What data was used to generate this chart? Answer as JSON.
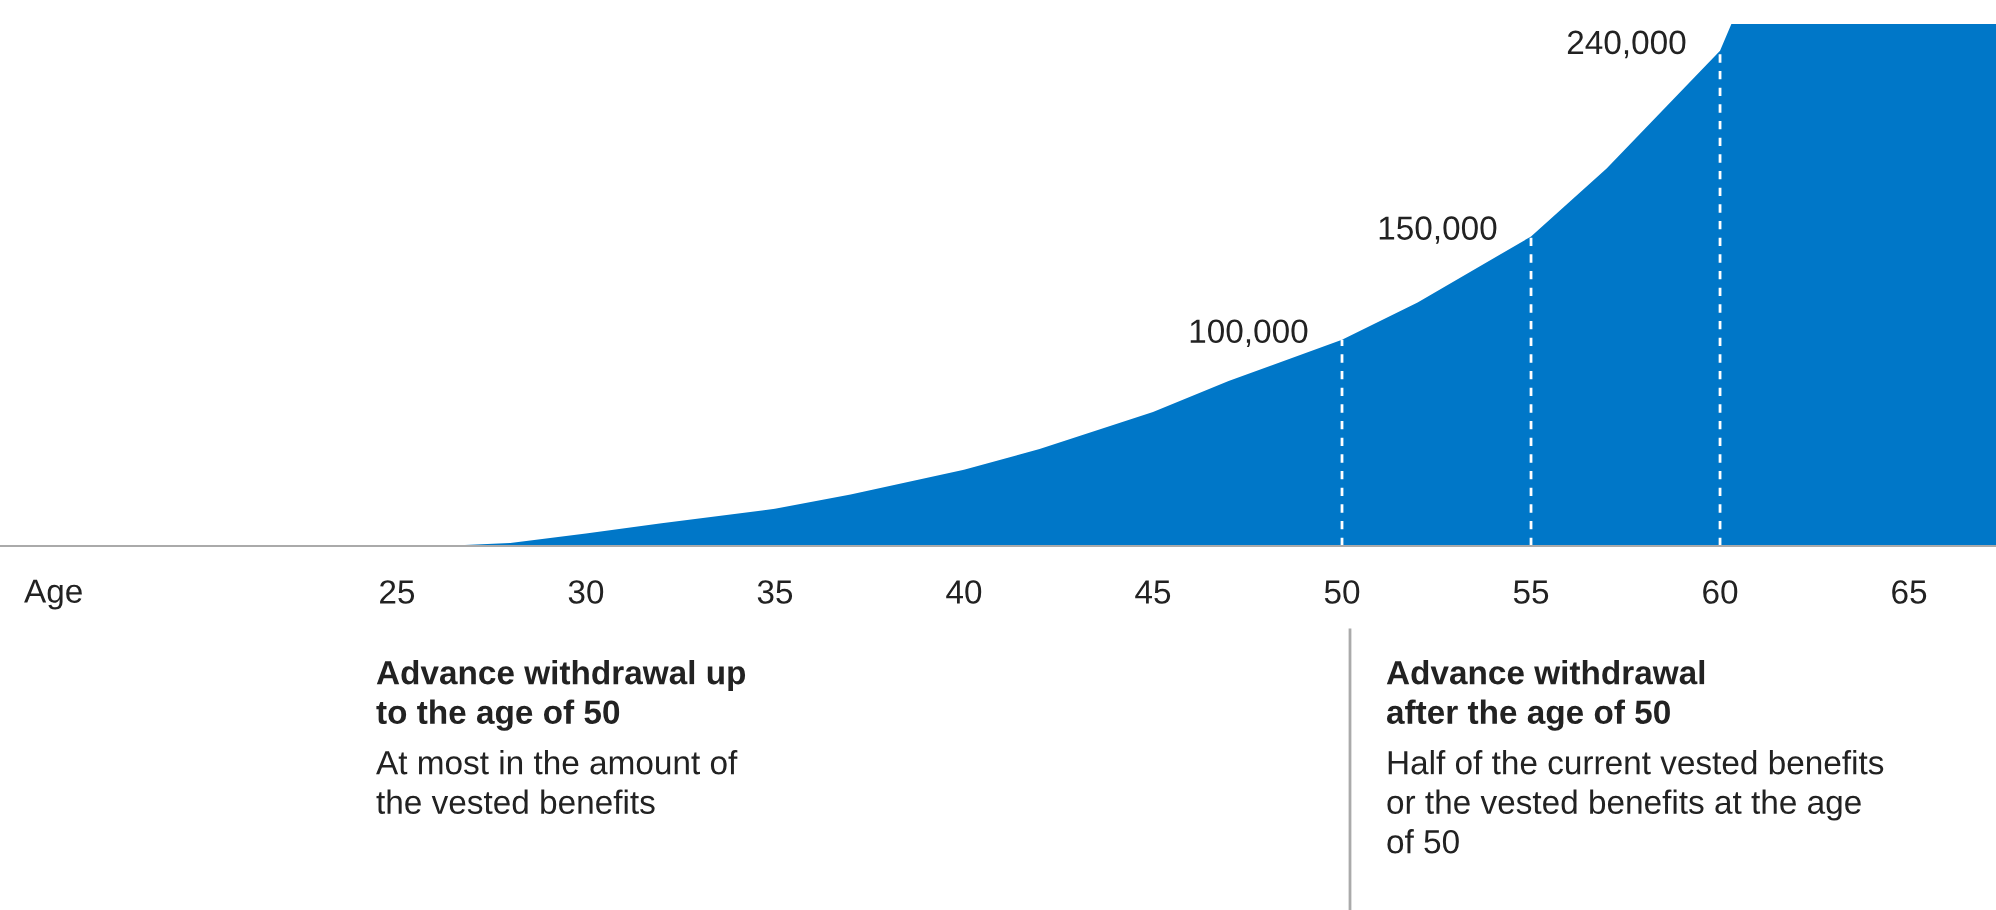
{
  "chart_data": {
    "type": "area",
    "xlabel": "Age",
    "x": [
      26.2,
      28,
      30,
      32,
      35,
      37,
      40,
      42,
      45,
      47,
      50,
      52,
      55,
      57,
      60,
      60.3,
      67.3
    ],
    "series": [
      {
        "color": "#0077c8",
        "values": [
          0,
          1500,
          6000,
          11000,
          18000,
          25000,
          37000,
          47000,
          65000,
          80000,
          100000,
          118000,
          150000,
          183000,
          240000,
          253000,
          253000
        ],
        "value_labels": [
          null,
          null,
          null,
          null,
          null,
          null,
          null,
          null,
          null,
          null,
          "100,000",
          null,
          "150,000",
          null,
          "240,000",
          null,
          null
        ]
      }
    ],
    "xlim": [
      14.5,
      67.3
    ],
    "xticks": [
      25,
      30,
      35,
      40,
      45,
      50,
      55,
      60,
      65
    ],
    "tick_labels": "x",
    "grid": false,
    "legend": false,
    "ref_lines": [
      {
        "axis": "x",
        "value": 50,
        "color": "#ffffff",
        "line_style": "dashed"
      },
      {
        "axis": "x",
        "value": 55,
        "color": "#ffffff",
        "line_style": "dashed"
      },
      {
        "axis": "x",
        "value": 60,
        "color": "#ffffff",
        "line_style": "dashed"
      }
    ],
    "annotations": [
      "Advance withdrawal up\nto the age of 50",
      "At most in the amount of\nthe vested benefits",
      "Advance withdrawal\nafter the age of 50",
      "Half of the current vested benefits\nor the vested benefits at the age\nof 50"
    ]
  }
}
